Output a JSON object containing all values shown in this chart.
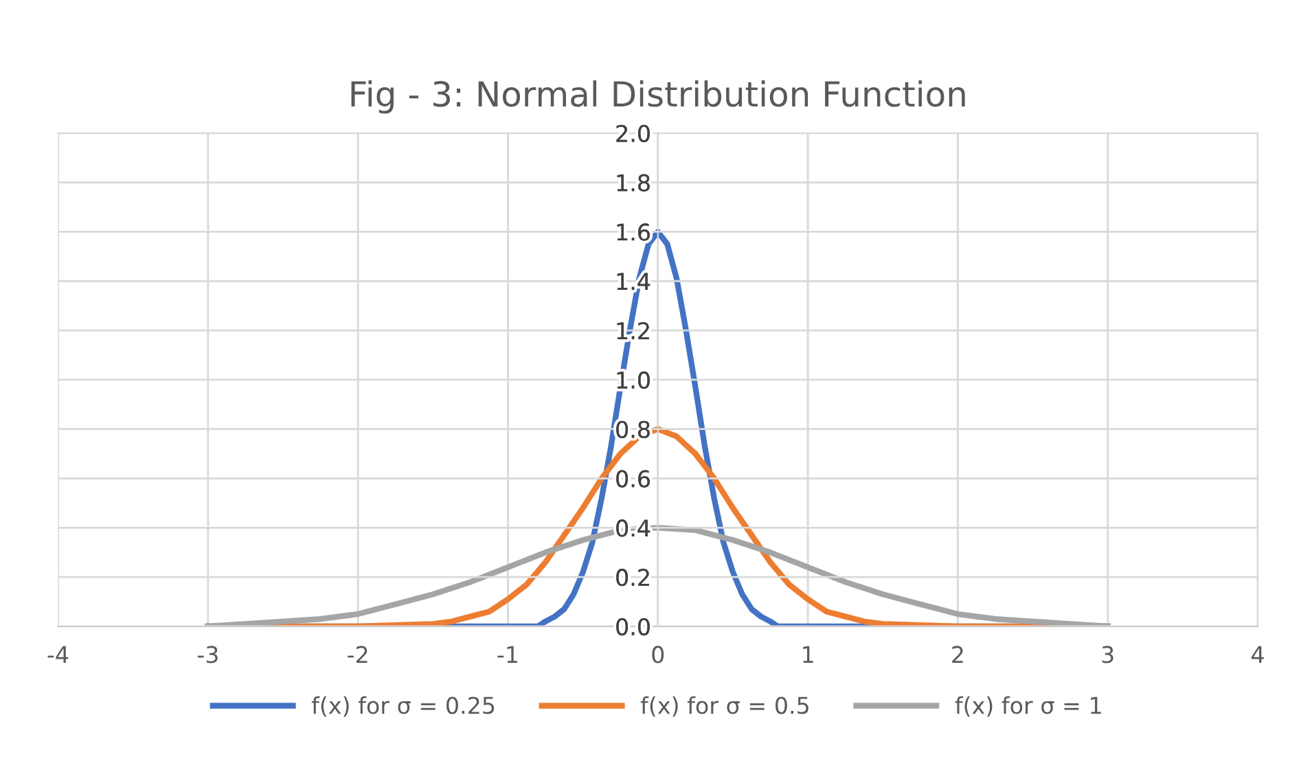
{
  "chart_data": {
    "type": "line",
    "title": "Fig - 3: Normal Distribution Function",
    "series": [
      {
        "name": "f(x) for σ = 0.25",
        "color": "#4472c4",
        "x": [
          -3,
          -2,
          -1,
          -0.8,
          -0.75,
          -0.6875,
          -0.625,
          -0.5625,
          -0.5,
          -0.4375,
          -0.375,
          -0.3125,
          -0.25,
          -0.1875,
          -0.125,
          -0.0625,
          0,
          0.0625,
          0.125,
          0.1875,
          0.25,
          0.3125,
          0.375,
          0.4375,
          0.5,
          0.5625,
          0.625,
          0.6875,
          0.75,
          0.8,
          1,
          2,
          3
        ],
        "values": [
          0,
          0,
          0,
          0,
          0.02,
          0.04,
          0.07,
          0.13,
          0.22,
          0.34,
          0.52,
          0.73,
          0.97,
          1.2,
          1.41,
          1.55,
          1.6,
          1.55,
          1.41,
          1.2,
          0.97,
          0.73,
          0.52,
          0.34,
          0.22,
          0.13,
          0.07,
          0.04,
          0.02,
          0,
          0,
          0,
          0
        ]
      },
      {
        "name": "f(x) for σ = 0.5",
        "color": "#ed7d31",
        "x": [
          -3,
          -2,
          -1.5,
          -1.375,
          -1.25,
          -1.125,
          -1,
          -0.875,
          -0.75,
          -0.625,
          -0.5,
          -0.375,
          -0.25,
          -0.125,
          0,
          0.125,
          0.25,
          0.375,
          0.5,
          0.625,
          0.75,
          0.875,
          1,
          1.125,
          1.25,
          1.375,
          1.5,
          2,
          3
        ],
        "values": [
          0,
          0,
          0.01,
          0.02,
          0.04,
          0.06,
          0.11,
          0.17,
          0.26,
          0.37,
          0.48,
          0.6,
          0.7,
          0.77,
          0.8,
          0.77,
          0.7,
          0.6,
          0.48,
          0.37,
          0.26,
          0.17,
          0.11,
          0.06,
          0.04,
          0.02,
          0.01,
          0,
          0
        ]
      },
      {
        "name": "f(x) for σ = 1",
        "color": "#a5a5a5",
        "x": [
          -3,
          -2.75,
          -2.5,
          -2.25,
          -2,
          -1.75,
          -1.5,
          -1.25,
          -1,
          -0.75,
          -0.5,
          -0.25,
          0,
          0.25,
          0.5,
          0.75,
          1,
          1.25,
          1.5,
          1.75,
          2,
          2.25,
          2.5,
          2.75,
          3
        ],
        "values": [
          0,
          0.01,
          0.02,
          0.03,
          0.05,
          0.09,
          0.13,
          0.18,
          0.24,
          0.3,
          0.35,
          0.39,
          0.4,
          0.39,
          0.35,
          0.3,
          0.24,
          0.18,
          0.13,
          0.09,
          0.05,
          0.03,
          0.02,
          0.01,
          0
        ]
      }
    ],
    "xlim": [
      -4,
      4
    ],
    "xticks": [
      -4,
      -3,
      -2,
      -1,
      0,
      1,
      2,
      3,
      4
    ],
    "ylim": [
      0,
      2
    ],
    "yticks": [
      {
        "value": 0,
        "label": "0.0"
      },
      {
        "value": 0.2,
        "label": "0.2"
      },
      {
        "value": 0.4,
        "label": "0.4"
      },
      {
        "value": 0.6,
        "label": "0.6"
      },
      {
        "value": 0.8,
        "label": "0.8"
      },
      {
        "value": 1,
        "label": "1.0"
      },
      {
        "value": 1.2,
        "label": "1.2"
      },
      {
        "value": 1.4,
        "label": "1.4"
      },
      {
        "value": 1.6,
        "label": "1.6"
      },
      {
        "value": 1.8,
        "label": "1.8"
      },
      {
        "value": 2,
        "label": "2.0"
      }
    ],
    "grid": true,
    "legend": "bottom",
    "marker": "none",
    "line_style": "solid"
  }
}
